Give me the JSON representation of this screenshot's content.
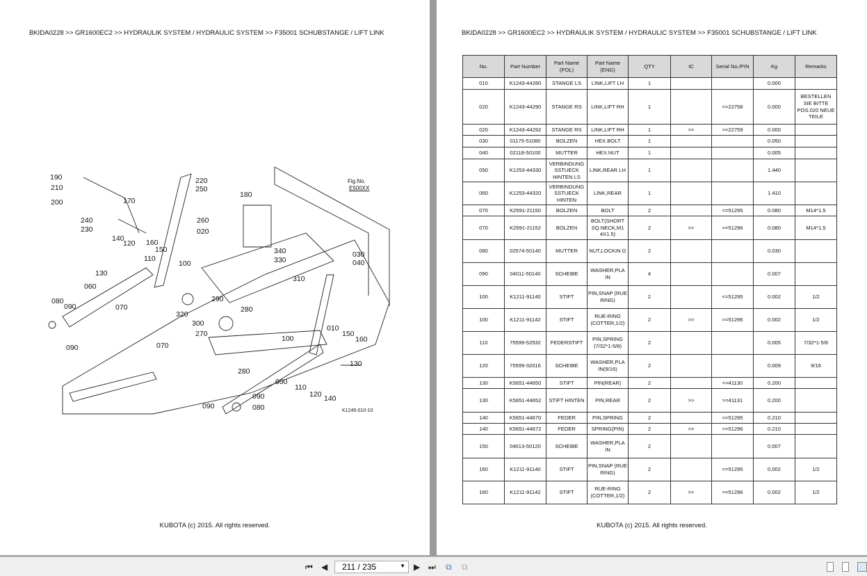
{
  "breadcrumb": "BKIDA0228 >> GR1600EC2 >> HYDRAULIK SYSTEM / HYDRAULIC SYSTEM >> F35001   SCHUBSTANGE / LIFT LINK",
  "footer": "KUBOTA (c) 2015. All rights reserved.",
  "diagram": {
    "fig_no": "Fig.No.",
    "fig_code": "E500XX",
    "drawing_code": "K1245-010-10",
    "callouts": [
      "190",
      "210",
      "200",
      "170",
      "220",
      "250",
      "180",
      "240",
      "230",
      "260",
      "020",
      "140",
      "120",
      "160",
      "150",
      "110",
      "340",
      "330",
      "030",
      "040",
      "100",
      "130",
      "310",
      "060",
      "080",
      "090",
      "070",
      "290",
      "280",
      "320",
      "300",
      "010",
      "270",
      "150",
      "160",
      "100",
      "090",
      "070",
      "130",
      "280",
      "050",
      "110",
      "120",
      "140",
      "090",
      "080",
      "090"
    ]
  },
  "table": {
    "headers": [
      "No.",
      "Part Number",
      "Part Name (POL)",
      "Part Name (ENG)",
      "QTY",
      "IC",
      "Serial No./PIN",
      "Kg",
      "Remarks"
    ],
    "rows": [
      [
        "010",
        "K1243-44280",
        "STANGE LS",
        "LINK,LIFT LH",
        "1",
        "",
        "",
        "0.000",
        ""
      ],
      [
        "020",
        "K1243-44290",
        "STANGE RS",
        "LINK,LIFT RH",
        "1",
        "",
        "<=22758",
        "0.000",
        "BESTELLEN SIE BITTE POS.020 NEUE TEILE"
      ],
      [
        "020",
        "K1243-44292",
        "STANGE RS",
        "LINK,LIFT RH",
        "1",
        ">>",
        ">=22759",
        "0.000",
        ""
      ],
      [
        "030",
        "01175-51080",
        "BOLZEN",
        "HEX.BOLT",
        "1",
        "",
        "",
        "0.050",
        ""
      ],
      [
        "040",
        "02118-50100",
        "MUTTER",
        "HEX.NUT",
        "1",
        "",
        "",
        "0.005",
        ""
      ],
      [
        "050",
        "K1253-44330",
        "VERBINDUNG SSTUECK HINTEN LS",
        "LINK,REAR LH",
        "1",
        "",
        "",
        "1.440",
        ""
      ],
      [
        "060",
        "K1253-44320",
        "VERBINDUNG SSTUECK HINTEN",
        "LINK,REAR",
        "1",
        "",
        "",
        "1.410",
        ""
      ],
      [
        "070",
        "K2591-21150",
        "BOLZEN",
        "BOLT",
        "2",
        "",
        "<=51295",
        "0.080",
        "M14*1.5"
      ],
      [
        "070",
        "K2591-21152",
        "BOLZEN",
        "BOLT(SHORT SQ.NECK,M1 4X1.5)",
        "2",
        ">>",
        ">=51296",
        "0.080",
        "M14*1.5"
      ],
      [
        "080",
        "02574-50140",
        "MUTTER",
        "NUT,LOCKIN G",
        "2",
        "",
        "",
        "0.030",
        ""
      ],
      [
        "090",
        "04011-50140",
        "SCHEIBE",
        "WASHER,PLA IN",
        "4",
        "",
        "",
        "0.007",
        ""
      ],
      [
        "100",
        "K1211-91140",
        "STIFT",
        "PIN,SNAP (RUE RING)",
        "2",
        "",
        "<=51295",
        "0.002",
        "1/2"
      ],
      [
        "100",
        "K1211-91142",
        "STIFT",
        "RUE-RING (COTTER,1/2)",
        "2",
        ">>",
        ">=51296",
        "0.002",
        "1/2"
      ],
      [
        "110",
        "75599-52532",
        "FEDERSTIFT",
        "PIN,SPRING (7/32*1-5/8)",
        "2",
        "",
        "",
        "0.005",
        "7/32*1-5/8"
      ],
      [
        "120",
        "75599-32016",
        "SCHEIBE",
        "WASHER,PLA IN(9/16)",
        "2",
        "",
        "",
        "0.009",
        "9/16"
      ],
      [
        "130",
        "K5651-44650",
        "STIFT",
        "PIN(REAR)",
        "2",
        "",
        "<=41130",
        "0.200",
        ""
      ],
      [
        "130",
        "K5651-44652",
        "STIFT HINTEN",
        "PIN,REAR",
        "2",
        ">>",
        ">=41131",
        "0.200",
        ""
      ],
      [
        "140",
        "K5651-44670",
        "FEDER",
        "PIN,SPRING",
        "2",
        "",
        "<=51295",
        "0.210",
        ""
      ],
      [
        "140",
        "K5651-44672",
        "FEDER",
        "SPRING(PIN)",
        "2",
        ">>",
        ">=51296",
        "0.210",
        ""
      ],
      [
        "150",
        "04013-50120",
        "SCHEIBE",
        "WASHER,PLA IN",
        "2",
        "",
        "",
        "0.007",
        ""
      ],
      [
        "160",
        "K1211-91140",
        "STIFT",
        "PIN,SNAP (RUE RING)",
        "2",
        "",
        "<=51295",
        "0.002",
        "1/2"
      ],
      [
        "160",
        "K1211-91142",
        "STIFT",
        "RUE-RING (COTTER,1/2)",
        "2",
        ">>",
        ">=51296",
        "0.002",
        "1/2"
      ]
    ]
  },
  "toolbar": {
    "page_indicator": "211 / 235",
    "icons": [
      "first-page-icon",
      "prev-page-icon",
      "next-page-icon",
      "last-page-icon",
      "copy-page-icon",
      "paste-page-icon",
      "single-page-view-icon",
      "continuous-view-icon",
      "two-page-view-icon"
    ]
  }
}
